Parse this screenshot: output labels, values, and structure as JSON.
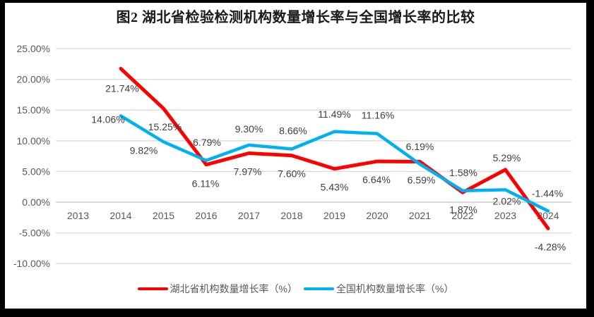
{
  "chart_data": {
    "type": "line",
    "title": "图2 湖北省检验检测机构数量增长率与全国增长率的比较",
    "categories": [
      "2013",
      "2014",
      "2015",
      "2016",
      "2017",
      "2018",
      "2019",
      "2020",
      "2021",
      "2022",
      "2023",
      "2024"
    ],
    "series": [
      {
        "name": "湖北省机构数量增长率（%）",
        "color": "#FF0000",
        "values": [
          null,
          21.74,
          15.25,
          6.11,
          7.97,
          7.6,
          5.43,
          6.64,
          6.59,
          1.58,
          5.29,
          -4.28
        ],
        "label_offsets": [
          null,
          [
            2,
            28
          ],
          [
            2,
            26
          ],
          [
            -1,
            27
          ],
          [
            -2,
            26
          ],
          [
            0,
            26
          ],
          [
            0,
            26
          ],
          [
            -1,
            26
          ],
          [
            2,
            26
          ],
          [
            1,
            -28
          ],
          [
            2,
            -17
          ],
          [
            3,
            26
          ]
        ]
      },
      {
        "name": "全国机构数量增长率（%）",
        "color": "#00B0F0",
        "values": [
          null,
          14.06,
          9.82,
          6.79,
          9.3,
          8.66,
          11.49,
          11.16,
          6.19,
          1.87,
          2.02,
          -1.44
        ],
        "label_offsets": [
          null,
          [
            -18,
            5
          ],
          [
            -28,
            12
          ],
          [
            1,
            -26
          ],
          [
            0,
            -23
          ],
          [
            2,
            -26
          ],
          [
            0,
            -25
          ],
          [
            1,
            -26
          ],
          [
            0,
            -25
          ],
          [
            1,
            27
          ],
          [
            2,
            16
          ],
          [
            -1,
            -25
          ]
        ]
      }
    ],
    "y_axis": {
      "min": -10,
      "max": 25,
      "step": 5,
      "tick_values": [
        25,
        20,
        15,
        10,
        5,
        0,
        -5,
        -10
      ],
      "tick_labels": [
        "25.00%",
        "20.00%",
        "15.00%",
        "10.00%",
        "5.00%",
        "0.00%",
        "-5.00%",
        "-10.00%"
      ]
    },
    "grid": true,
    "legend_position": "bottom",
    "colors": {
      "gridline": "#D9D9D9",
      "axis_line": "#CFCFCF",
      "axis_text": "#595959",
      "data_label_text": "#3f3f3f",
      "frame": "#000000"
    }
  }
}
